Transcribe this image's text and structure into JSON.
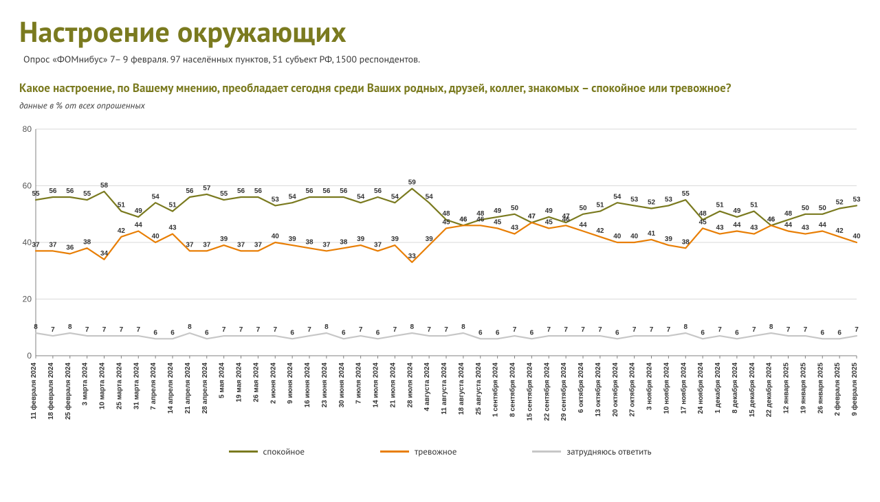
{
  "title": "Настроение окружающих",
  "subtitle": "Опрос «ФОМнибус» 7– 9 февраля. 97 населённых пунктов, 51 субъект РФ, 1500 респондентов.",
  "question": "Какое настроение, по Вашему мнению, преобладает сегодня среди Ваших родных, друзей, коллег, знакомых – спокойное или тревожное?",
  "note": "данные в % от всех опрошенных",
  "chart": {
    "type": "line",
    "ylim": [
      0,
      80
    ],
    "ytick_step": 20,
    "grid_color": "#d9d9d9",
    "axis_color": "#808080",
    "background": "#ffffff",
    "font_size_labels": 10,
    "font_size_xlabels": 10,
    "line_width": 2.2,
    "marker": "none",
    "categories": [
      "11 февраля 2024",
      "18 февраля 2024",
      "25 февраля 2024",
      "3 марта 2024",
      "10 марта 2024",
      "25 марта 2024",
      "31 марта 2024",
      "7 апреля 2024",
      "14 апреля 2024",
      "21 апреля 2024",
      "28 апреля 2024",
      "5 мая 2024",
      "19 мая 2024",
      "26 мая 2024",
      "2 июня 2024",
      "9 июня 2024",
      "16 июня 2024",
      "23 июня 2024",
      "30 июня 2024",
      "7 июля 2024",
      "14 июля 2024",
      "21 июля 2024",
      "28 июля 2024",
      "4 августа 2024",
      "11 августа 2024",
      "18 августа 2024",
      "25 августа 2024",
      "1 сентября 2024",
      "8 сентября 2024",
      "15 сентября 2024",
      "22 сентября 2024",
      "29 сентября 2024",
      "6 октября 2024",
      "13 октября 2024",
      "20 октября 2024",
      "27 октября 2024",
      "3 ноября 2024",
      "10 ноября 2024",
      "17 ноября 2024",
      "24 ноября 2024",
      "1 декабря 2024",
      "8 декабря 2024",
      "15 декабря 2024",
      "22 декабря 2024",
      "12 января 2025",
      "19 января 2025",
      "26 января 2025",
      "2 февраля 2025",
      "9 февраля 2025"
    ],
    "series": [
      {
        "name": "спокойное",
        "color": "#7a7a1f",
        "values": [
          55,
          56,
          56,
          55,
          58,
          51,
          49,
          54,
          51,
          56,
          57,
          55,
          56,
          56,
          53,
          54,
          56,
          56,
          56,
          54,
          56,
          54,
          59,
          54,
          48,
          46,
          48,
          49,
          50,
          47,
          49,
          47,
          50,
          51,
          54,
          53,
          52,
          53,
          55,
          48,
          51,
          49,
          51,
          46,
          48,
          50,
          50,
          52,
          53
        ]
      },
      {
        "name": "тревожное",
        "color": "#e87e04",
        "values": [
          37,
          37,
          36,
          38,
          34,
          42,
          44,
          40,
          43,
          37,
          37,
          39,
          37,
          37,
          40,
          39,
          38,
          37,
          38,
          39,
          37,
          39,
          33,
          39,
          45,
          46,
          46,
          45,
          43,
          47,
          45,
          46,
          44,
          42,
          40,
          40,
          41,
          39,
          38,
          45,
          43,
          44,
          43,
          46,
          44,
          43,
          44,
          42,
          40
        ]
      },
      {
        "name": "затрудняюсь ответить",
        "color": "#c7c7c7",
        "values": [
          8,
          7,
          8,
          7,
          7,
          7,
          7,
          6,
          6,
          8,
          6,
          7,
          7,
          7,
          7,
          6,
          7,
          8,
          6,
          7,
          6,
          7,
          8,
          7,
          7,
          8,
          6,
          6,
          7,
          6,
          7,
          7,
          7,
          7,
          6,
          7,
          7,
          7,
          8,
          6,
          7,
          6,
          7,
          8,
          7,
          7,
          6,
          6,
          7
        ]
      }
    ],
    "legend": {
      "calm": "спокойное",
      "anxious": "тревожное",
      "dk": "затрудняюсь ответить"
    }
  }
}
